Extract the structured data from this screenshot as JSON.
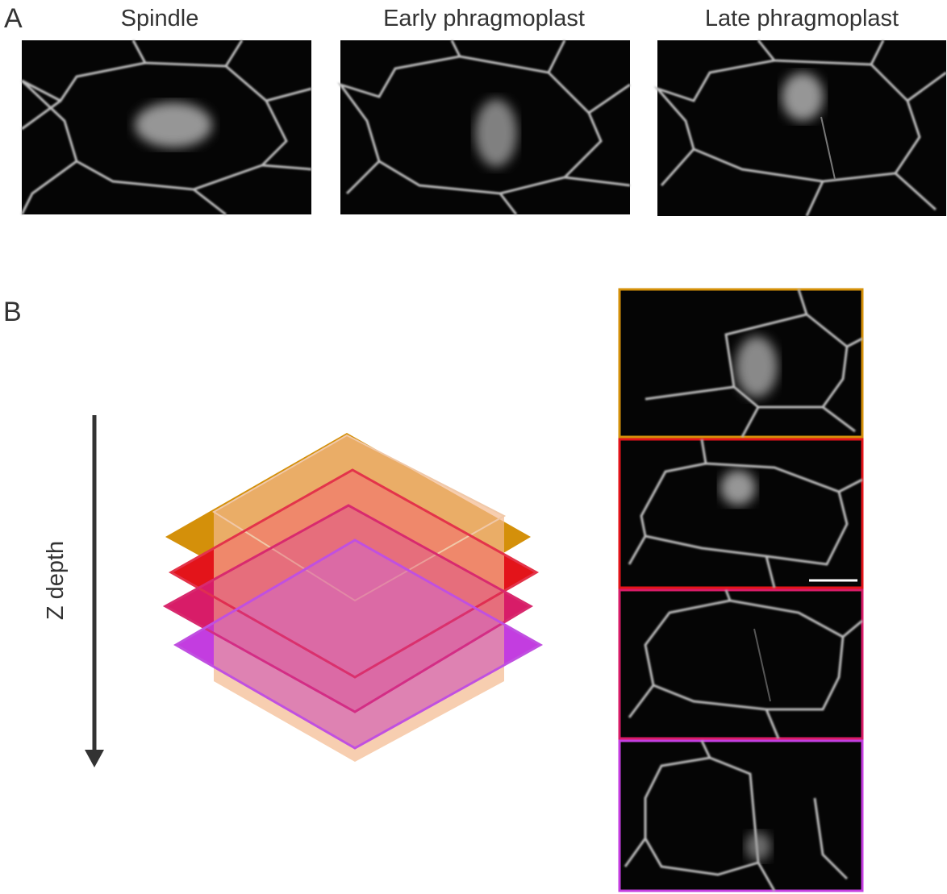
{
  "panel_a": {
    "label": "A",
    "titles": [
      "Spindle",
      "Early phragmoplast",
      "Late phragmoplast"
    ]
  },
  "panel_b": {
    "label": "B",
    "axis_label": "Z depth"
  }
}
